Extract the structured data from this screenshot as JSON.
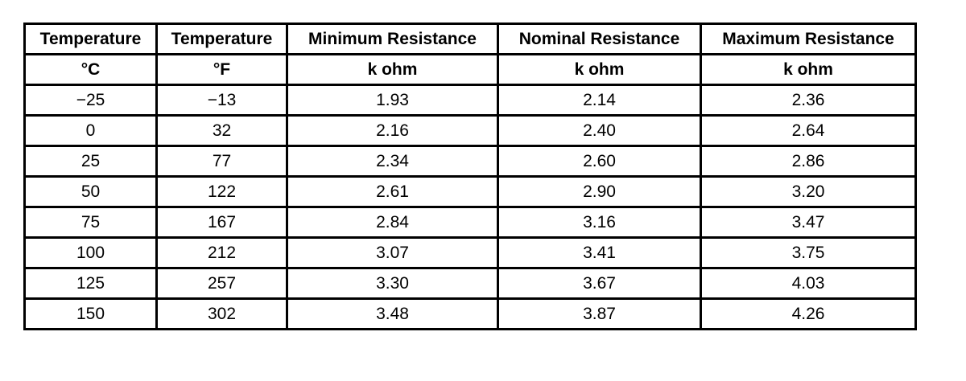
{
  "table": {
    "header": [
      [
        "Temperature",
        "Temperature",
        "Minimum Resistance",
        "Nominal Resistance",
        "Maximum Resistance"
      ],
      [
        "°C",
        "°F",
        "k ohm",
        "k ohm",
        "k ohm"
      ]
    ],
    "rows": [
      [
        "−25",
        "−13",
        "1.93",
        "2.14",
        "2.36"
      ],
      [
        "0",
        "32",
        "2.16",
        "2.40",
        "2.64"
      ],
      [
        "25",
        "77",
        "2.34",
        "2.60",
        "2.86"
      ],
      [
        "50",
        "122",
        "2.61",
        "2.90",
        "3.20"
      ],
      [
        "75",
        "167",
        "2.84",
        "3.16",
        "3.47"
      ],
      [
        "100",
        "212",
        "3.07",
        "3.41",
        "3.75"
      ],
      [
        "125",
        "257",
        "3.30",
        "3.67",
        "4.03"
      ],
      [
        "150",
        "302",
        "3.48",
        "3.87",
        "4.26"
      ]
    ]
  }
}
